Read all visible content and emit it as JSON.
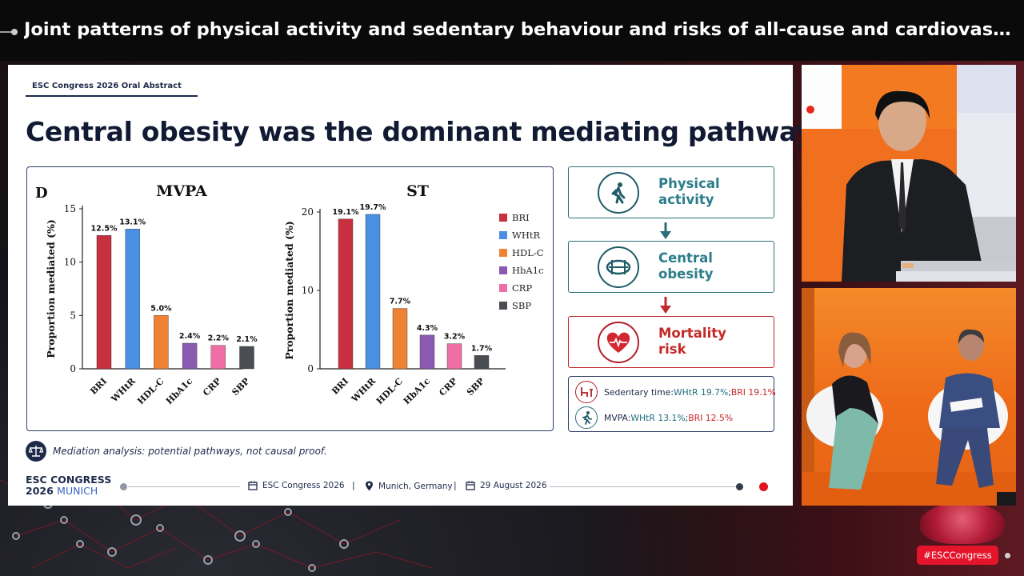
{
  "header": {
    "title": "Joint patterns of physical activity and sedentary behaviour and risks of all-cause and cardiovascula..."
  },
  "slide": {
    "abstract_tag": "ESC Congress 2026 Oral Abstract",
    "headline": "Central obesity was the dominant mediating pathway",
    "panel_label": "D",
    "flow": [
      {
        "line1": "Physical",
        "line2": "activity",
        "icon": "walking-person-icon"
      },
      {
        "line1": "Central",
        "line2": "obesity",
        "icon": "waist-measure-icon"
      },
      {
        "line1": "Mortality",
        "line2": "risk",
        "icon": "heart-pulse-icon"
      }
    ],
    "summary": {
      "sedentary_label": "Sedentary time: ",
      "sedentary_whtr": "WHtR 19.7%",
      "sedentary_sep": "; ",
      "sedentary_bri": "BRI 19.1%",
      "mvpa_label": "MVPA: ",
      "mvpa_whtr": "WHtR 13.1%",
      "mvpa_sep": "; ",
      "mvpa_bri": "BRI 12.5%"
    },
    "note": "Mediation analysis: potential pathways, not causal proof.",
    "footer": {
      "logo_line1": "ESC CONGRESS",
      "logo_line2a": "2026 ",
      "logo_line2b": "MUNICH",
      "event": "ESC Congress 2026",
      "location": "Munich, Germany",
      "date": "29 August 2026",
      "sep": "|"
    }
  },
  "badge": "#ESCCongress",
  "colors": {
    "BRI": "#c8303f",
    "WHtR": "#4a90e2",
    "HDL-C": "#ee8232",
    "HbA1c": "#8a5ab0",
    "CRP": "#ef6ea6",
    "SBP": "#4a4e52"
  },
  "chart_data": [
    {
      "type": "bar",
      "title": "MVPA",
      "ylabel": "Proportion mediated (%)",
      "categories": [
        "BRI",
        "WHtR",
        "HDL-C",
        "HbA1c",
        "CRP",
        "SBP"
      ],
      "values": [
        12.5,
        13.1,
        5.0,
        2.4,
        2.2,
        2.1
      ],
      "labels": [
        "12.5%",
        "13.1%",
        "5.0%",
        "2.4%",
        "2.2%",
        "2.1%"
      ],
      "yticks": [
        "0",
        "5",
        "10",
        "15"
      ],
      "ylim": [
        0,
        15
      ]
    },
    {
      "type": "bar",
      "title": "ST",
      "ylabel": "Proportion mediated (%)",
      "categories": [
        "BRI",
        "WHtR",
        "HDL-C",
        "HbA1c",
        "CRP",
        "SBP"
      ],
      "values": [
        19.1,
        19.7,
        7.7,
        4.3,
        3.2,
        1.7
      ],
      "labels": [
        "19.1%",
        "19.7%",
        "7.7%",
        "4.3%",
        "3.2%",
        "1.7%"
      ],
      "yticks": [
        "0",
        "10",
        "20"
      ],
      "ylim": [
        0,
        20
      ],
      "legend": [
        "BRI",
        "WHtR",
        "HDL-C",
        "HbA1c",
        "CRP",
        "SBP"
      ]
    }
  ]
}
